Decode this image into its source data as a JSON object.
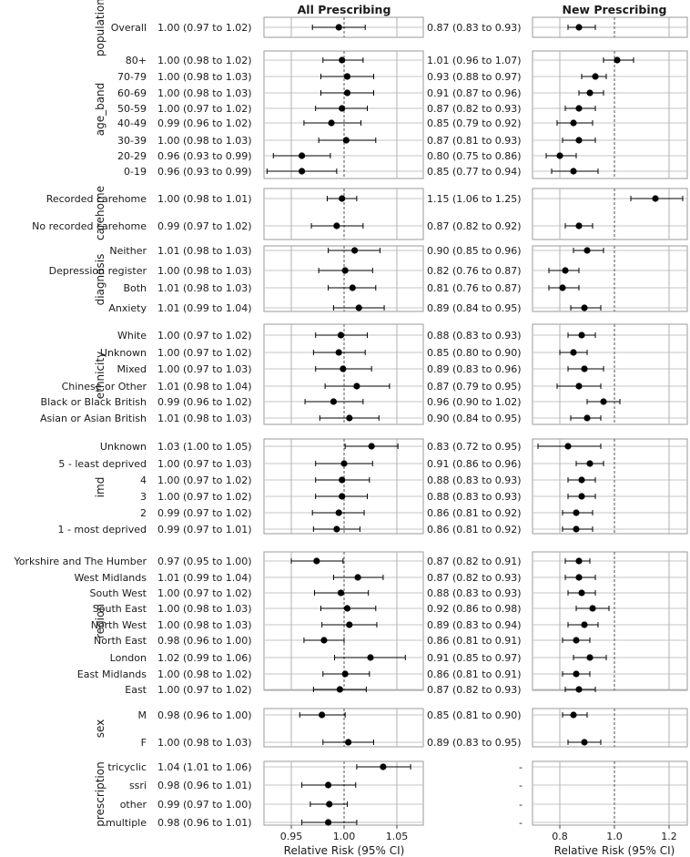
{
  "chart_data": {
    "type": "forest",
    "panels": [
      {
        "title": "All Prescribing",
        "xticks": [
          "0.95",
          "1.00",
          "1.05"
        ],
        "xlabel": "Relative Risk (95% CI)",
        "xlim": [
          0.92,
          1.07
        ],
        "ref": 1.0
      },
      {
        "title": "New Prescribing",
        "xticks": [
          "0.8",
          "1.0",
          "1.2"
        ],
        "xlabel": "Relative Risk (95% CI)",
        "xlim": [
          0.69,
          1.27
        ],
        "ref": 1.0
      }
    ],
    "groups": [
      {
        "name": "population",
        "rows": [
          {
            "label": "Overall",
            "all": {
              "text": "1.00 (0.97 to 1.02)",
              "est": 0.995,
              "lo": 0.97,
              "hi": 1.02
            },
            "new": {
              "text": "0.87 (0.83 to 0.93)",
              "est": 0.87,
              "lo": 0.83,
              "hi": 0.93
            }
          }
        ]
      },
      {
        "name": "age_band",
        "rows": [
          {
            "label": "80+",
            "all": {
              "text": "1.00 (0.98 to 1.02)",
              "est": 0.998,
              "lo": 0.98,
              "hi": 1.018
            },
            "new": {
              "text": "1.01 (0.96 to 1.07)",
              "est": 1.01,
              "lo": 0.96,
              "hi": 1.07
            }
          },
          {
            "label": "70-79",
            "all": {
              "text": "1.00 (0.98 to 1.03)",
              "est": 1.003,
              "lo": 0.978,
              "hi": 1.028
            },
            "new": {
              "text": "0.93 (0.88 to 0.97)",
              "est": 0.93,
              "lo": 0.88,
              "hi": 0.97
            }
          },
          {
            "label": "60-69",
            "all": {
              "text": "1.00 (0.98 to 1.03)",
              "est": 1.003,
              "lo": 0.978,
              "hi": 1.028
            },
            "new": {
              "text": "0.91 (0.87 to 0.96)",
              "est": 0.91,
              "lo": 0.87,
              "hi": 0.96
            }
          },
          {
            "label": "50-59",
            "all": {
              "text": "1.00 (0.97 to 1.02)",
              "est": 0.998,
              "lo": 0.973,
              "hi": 1.022
            },
            "new": {
              "text": "0.87 (0.82 to 0.93)",
              "est": 0.87,
              "lo": 0.82,
              "hi": 0.93
            }
          },
          {
            "label": "40-49",
            "all": {
              "text": "0.99 (0.96 to 1.02)",
              "est": 0.988,
              "lo": 0.962,
              "hi": 1.016
            },
            "new": {
              "text": "0.85 (0.79 to 0.92)",
              "est": 0.85,
              "lo": 0.79,
              "hi": 0.92
            }
          },
          {
            "label": "30-39",
            "all": {
              "text": "1.00 (0.98 to 1.03)",
              "est": 1.002,
              "lo": 0.976,
              "hi": 1.03
            },
            "new": {
              "text": "0.87 (0.81 to 0.93)",
              "est": 0.87,
              "lo": 0.81,
              "hi": 0.93
            }
          },
          {
            "label": "20-29",
            "all": {
              "text": "0.96 (0.93 to 0.99)",
              "est": 0.96,
              "lo": 0.933,
              "hi": 0.987
            },
            "new": {
              "text": "0.80 (0.75 to 0.86)",
              "est": 0.8,
              "lo": 0.75,
              "hi": 0.86
            }
          },
          {
            "label": "0-19",
            "all": {
              "text": "0.96 (0.93 to 0.99)",
              "est": 0.96,
              "lo": 0.927,
              "hi": 0.993
            },
            "new": {
              "text": "0.85 (0.77 to 0.94)",
              "est": 0.85,
              "lo": 0.77,
              "hi": 0.94
            }
          }
        ]
      },
      {
        "name": "carehome",
        "rows": [
          {
            "label": "Recorded carehome",
            "all": {
              "text": "1.00 (0.98 to 1.01)",
              "est": 0.998,
              "lo": 0.984,
              "hi": 1.012
            },
            "new": {
              "text": "1.15 (1.06 to 1.25)",
              "est": 1.15,
              "lo": 1.06,
              "hi": 1.25
            }
          },
          {
            "label": "No recorded carehome",
            "all": {
              "text": "0.99 (0.97 to 1.02)",
              "est": 0.993,
              "lo": 0.969,
              "hi": 1.018
            },
            "new": {
              "text": "0.87 (0.82 to 0.92)",
              "est": 0.87,
              "lo": 0.82,
              "hi": 0.92
            }
          }
        ]
      },
      {
        "name": "diagnosis",
        "rows": [
          {
            "label": "Neither",
            "all": {
              "text": "1.01 (0.98 to 1.03)",
              "est": 1.01,
              "lo": 0.985,
              "hi": 1.034
            },
            "new": {
              "text": "0.90 (0.85 to 0.96)",
              "est": 0.9,
              "lo": 0.85,
              "hi": 0.96
            }
          },
          {
            "label": "Depression register",
            "all": {
              "text": "1.00 (0.98 to 1.03)",
              "est": 1.001,
              "lo": 0.976,
              "hi": 1.027
            },
            "new": {
              "text": "0.82 (0.76 to 0.87)",
              "est": 0.82,
              "lo": 0.76,
              "hi": 0.87
            }
          },
          {
            "label": "Both",
            "all": {
              "text": "1.01 (0.98 to 1.03)",
              "est": 1.008,
              "lo": 0.985,
              "hi": 1.03
            },
            "new": {
              "text": "0.81 (0.76 to 0.87)",
              "est": 0.81,
              "lo": 0.76,
              "hi": 0.87
            }
          },
          {
            "label": "Anxiety",
            "all": {
              "text": "1.01 (0.99 to 1.04)",
              "est": 1.014,
              "lo": 0.99,
              "hi": 1.038
            },
            "new": {
              "text": "0.89 (0.84 to 0.95)",
              "est": 0.89,
              "lo": 0.84,
              "hi": 0.95
            }
          }
        ]
      },
      {
        "name": "ethnicity",
        "rows": [
          {
            "label": "White",
            "all": {
              "text": "1.00 (0.97 to 1.02)",
              "est": 0.997,
              "lo": 0.973,
              "hi": 1.022
            },
            "new": {
              "text": "0.88 (0.83 to 0.93)",
              "est": 0.88,
              "lo": 0.83,
              "hi": 0.93
            }
          },
          {
            "label": "Unknown",
            "all": {
              "text": "1.00 (0.97 to 1.02)",
              "est": 0.995,
              "lo": 0.971,
              "hi": 1.02
            },
            "new": {
              "text": "0.85 (0.80 to 0.90)",
              "est": 0.85,
              "lo": 0.8,
              "hi": 0.9
            }
          },
          {
            "label": "Mixed",
            "all": {
              "text": "1.00 (0.97 to 1.03)",
              "est": 0.999,
              "lo": 0.973,
              "hi": 1.026
            },
            "new": {
              "text": "0.89 (0.83 to 0.96)",
              "est": 0.89,
              "lo": 0.83,
              "hi": 0.96
            }
          },
          {
            "label": "Chinese or Other",
            "all": {
              "text": "1.01 (0.98 to 1.04)",
              "est": 1.012,
              "lo": 0.982,
              "hi": 1.043
            },
            "new": {
              "text": "0.87 (0.79 to 0.95)",
              "est": 0.87,
              "lo": 0.79,
              "hi": 0.95
            }
          },
          {
            "label": "Black or Black British",
            "all": {
              "text": "0.99 (0.96 to 1.02)",
              "est": 0.99,
              "lo": 0.963,
              "hi": 1.018
            },
            "new": {
              "text": "0.96 (0.90 to 1.02)",
              "est": 0.96,
              "lo": 0.9,
              "hi": 1.02
            }
          },
          {
            "label": "Asian or Asian British",
            "all": {
              "text": "1.01 (0.98 to 1.03)",
              "est": 1.005,
              "lo": 0.977,
              "hi": 1.033
            },
            "new": {
              "text": "0.90 (0.84 to 0.95)",
              "est": 0.9,
              "lo": 0.84,
              "hi": 0.95
            }
          }
        ]
      },
      {
        "name": "imd",
        "rows": [
          {
            "label": "Unknown",
            "all": {
              "text": "1.03 (1.00 to 1.05)",
              "est": 1.026,
              "lo": 1.001,
              "hi": 1.051
            },
            "new": {
              "text": "0.83 (0.72 to 0.95)",
              "est": 0.83,
              "lo": 0.72,
              "hi": 0.95
            }
          },
          {
            "label": "5 - least deprived",
            "all": {
              "text": "1.00 (0.97 to 1.03)",
              "est": 1.0,
              "lo": 0.973,
              "hi": 1.027
            },
            "new": {
              "text": "0.91 (0.86 to 0.96)",
              "est": 0.91,
              "lo": 0.86,
              "hi": 0.96
            }
          },
          {
            "label": "4",
            "all": {
              "text": "1.00 (0.97 to 1.02)",
              "est": 0.998,
              "lo": 0.973,
              "hi": 1.024
            },
            "new": {
              "text": "0.88 (0.83 to 0.93)",
              "est": 0.88,
              "lo": 0.83,
              "hi": 0.93
            }
          },
          {
            "label": "3",
            "all": {
              "text": "1.00 (0.97 to 1.02)",
              "est": 0.998,
              "lo": 0.973,
              "hi": 1.022
            },
            "new": {
              "text": "0.88 (0.83 to 0.93)",
              "est": 0.88,
              "lo": 0.83,
              "hi": 0.93
            }
          },
          {
            "label": "2",
            "all": {
              "text": "0.99 (0.97 to 1.02)",
              "est": 0.995,
              "lo": 0.97,
              "hi": 1.019
            },
            "new": {
              "text": "0.86 (0.81 to 0.92)",
              "est": 0.86,
              "lo": 0.81,
              "hi": 0.92
            }
          },
          {
            "label": "1 - most deprived",
            "all": {
              "text": "0.99 (0.97 to 1.01)",
              "est": 0.993,
              "lo": 0.971,
              "hi": 1.015
            },
            "new": {
              "text": "0.86 (0.81 to 0.92)",
              "est": 0.86,
              "lo": 0.81,
              "hi": 0.92
            }
          }
        ]
      },
      {
        "name": "region",
        "rows": [
          {
            "label": "Yorkshire and The Humber",
            "all": {
              "text": "0.97 (0.95 to 1.00)",
              "est": 0.974,
              "lo": 0.95,
              "hi": 0.999
            },
            "new": {
              "text": "0.87 (0.82 to 0.91)",
              "est": 0.87,
              "lo": 0.82,
              "hi": 0.91
            }
          },
          {
            "label": "West Midlands",
            "all": {
              "text": "1.01 (0.99 to 1.04)",
              "est": 1.013,
              "lo": 0.99,
              "hi": 1.037
            },
            "new": {
              "text": "0.87 (0.82 to 0.93)",
              "est": 0.87,
              "lo": 0.82,
              "hi": 0.93
            }
          },
          {
            "label": "South West",
            "all": {
              "text": "1.00 (0.97 to 1.02)",
              "est": 0.997,
              "lo": 0.972,
              "hi": 1.023
            },
            "new": {
              "text": "0.88 (0.83 to 0.93)",
              "est": 0.88,
              "lo": 0.83,
              "hi": 0.93
            }
          },
          {
            "label": "South East",
            "all": {
              "text": "1.00 (0.98 to 1.03)",
              "est": 1.003,
              "lo": 0.978,
              "hi": 1.03
            },
            "new": {
              "text": "0.92 (0.86 to 0.98)",
              "est": 0.92,
              "lo": 0.86,
              "hi": 0.98
            }
          },
          {
            "label": "North West",
            "all": {
              "text": "1.00 (0.98 to 1.03)",
              "est": 1.005,
              "lo": 0.979,
              "hi": 1.031
            },
            "new": {
              "text": "0.89 (0.83 to 0.94)",
              "est": 0.89,
              "lo": 0.83,
              "hi": 0.94
            }
          },
          {
            "label": "North East",
            "all": {
              "text": "0.98 (0.96 to 1.00)",
              "est": 0.981,
              "lo": 0.962,
              "hi": 1.0
            },
            "new": {
              "text": "0.86 (0.81 to 0.91)",
              "est": 0.86,
              "lo": 0.81,
              "hi": 0.91
            }
          },
          {
            "label": "London",
            "all": {
              "text": "1.02 (0.99 to 1.06)",
              "est": 1.025,
              "lo": 0.991,
              "hi": 1.058
            },
            "new": {
              "text": "0.91 (0.85 to 0.97)",
              "est": 0.91,
              "lo": 0.85,
              "hi": 0.97
            }
          },
          {
            "label": "East Midlands",
            "all": {
              "text": "1.00 (0.98 to 1.02)",
              "est": 1.001,
              "lo": 0.98,
              "hi": 1.024
            },
            "new": {
              "text": "0.86 (0.81 to 0.91)",
              "est": 0.86,
              "lo": 0.81,
              "hi": 0.91
            }
          },
          {
            "label": "East",
            "all": {
              "text": "1.00 (0.97 to 1.02)",
              "est": 0.996,
              "lo": 0.971,
              "hi": 1.021
            },
            "new": {
              "text": "0.87 (0.82 to 0.93)",
              "est": 0.87,
              "lo": 0.82,
              "hi": 0.93
            }
          }
        ]
      },
      {
        "name": "sex",
        "rows": [
          {
            "label": "M",
            "all": {
              "text": "0.98 (0.96 to 1.00)",
              "est": 0.979,
              "lo": 0.958,
              "hi": 1.001
            },
            "new": {
              "text": "0.85 (0.81 to 0.90)",
              "est": 0.85,
              "lo": 0.81,
              "hi": 0.9
            }
          },
          {
            "label": "F",
            "all": {
              "text": "1.00 (0.98 to 1.03)",
              "est": 1.004,
              "lo": 0.98,
              "hi": 1.028
            },
            "new": {
              "text": "0.89 (0.83 to 0.95)",
              "est": 0.89,
              "lo": 0.83,
              "hi": 0.95
            }
          }
        ]
      },
      {
        "name": "prescription",
        "rows": [
          {
            "label": "tricyclic",
            "all": {
              "text": "1.04 (1.01 to 1.06)",
              "est": 1.037,
              "lo": 1.012,
              "hi": 1.063
            },
            "new": {
              "text": "-"
            }
          },
          {
            "label": "ssri",
            "all": {
              "text": "0.98 (0.96 to 1.01)",
              "est": 0.985,
              "lo": 0.96,
              "hi": 1.011
            },
            "new": {
              "text": "-"
            }
          },
          {
            "label": "other",
            "all": {
              "text": "0.99 (0.97 to 1.00)",
              "est": 0.986,
              "lo": 0.968,
              "hi": 1.003
            },
            "new": {
              "text": "-"
            }
          },
          {
            "label": "multiple",
            "all": {
              "text": "0.98 (0.96 to 1.01)",
              "est": 0.985,
              "lo": 0.96,
              "hi": 1.012
            },
            "new": {
              "text": "-"
            }
          }
        ]
      }
    ]
  }
}
